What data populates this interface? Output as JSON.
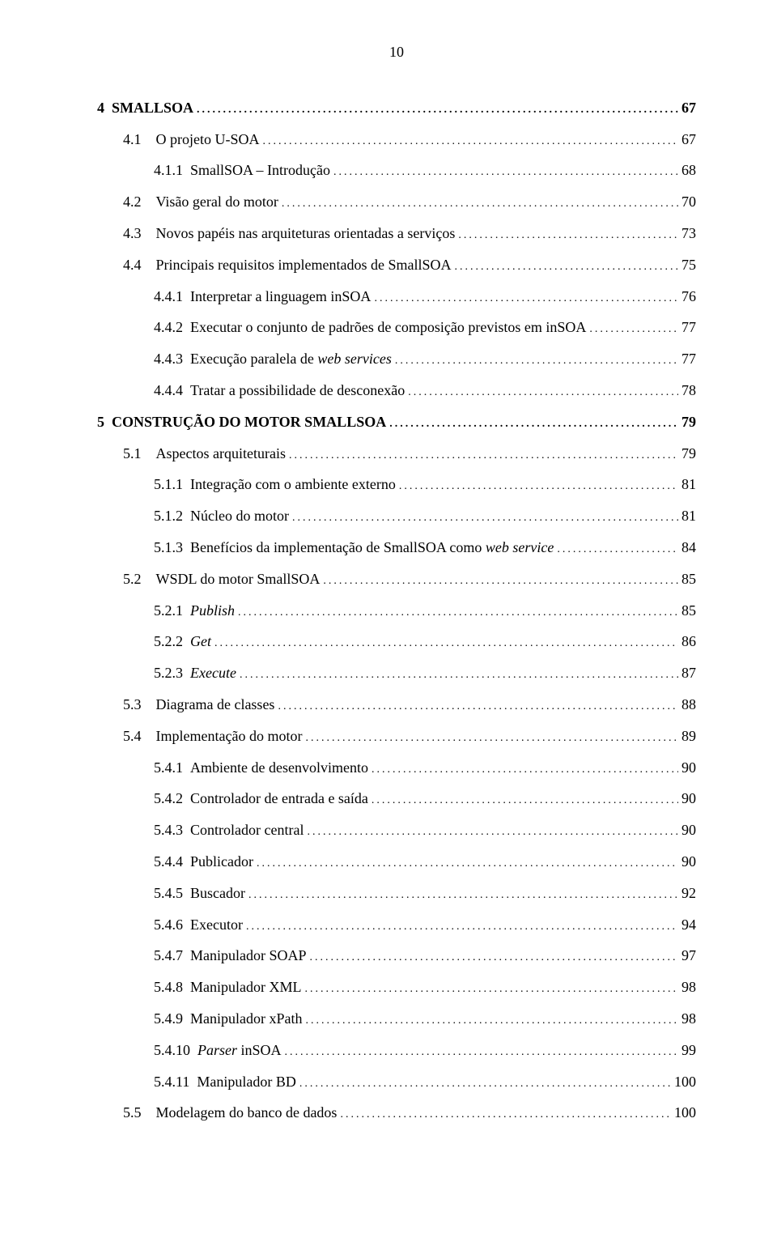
{
  "page_number": "10",
  "entries": [
    {
      "num": "4",
      "title": "SMALLSOA",
      "page": "67",
      "level": 0,
      "bold": true,
      "italic": false
    },
    {
      "num": "4.1",
      "title": "O projeto U-SOA",
      "page": "67",
      "level": 1,
      "bold": false,
      "italic": false
    },
    {
      "num": "4.1.1",
      "title": "SmallSOA – Introdução",
      "page": "68",
      "level": 2,
      "bold": false,
      "italic": false
    },
    {
      "num": "4.2",
      "title": "Visão geral do motor",
      "page": "70",
      "level": 1,
      "bold": false,
      "italic": false
    },
    {
      "num": "4.3",
      "title": "Novos papéis nas arquiteturas orientadas a serviços",
      "page": "73",
      "level": 1,
      "bold": false,
      "italic": false
    },
    {
      "num": "4.4",
      "title": "Principais requisitos implementados de SmallSOA",
      "page": "75",
      "level": 1,
      "bold": false,
      "italic": false
    },
    {
      "num": "4.4.1",
      "title": "Interpretar a linguagem inSOA",
      "page": "76",
      "level": 2,
      "bold": false,
      "italic": false
    },
    {
      "num": "4.4.2",
      "title": "Executar o conjunto de padrões de composição previstos em inSOA",
      "page": "77",
      "level": 2,
      "bold": false,
      "italic": false
    },
    {
      "num": "4.4.3",
      "title": "Execução paralela de ",
      "title_italic": "web services",
      "page": "77",
      "level": 2,
      "bold": false,
      "italic": false
    },
    {
      "num": "4.4.4",
      "title": "Tratar a possibilidade de desconexão",
      "page": "78",
      "level": 2,
      "bold": false,
      "italic": false
    },
    {
      "num": "5",
      "title": "CONSTRUÇÃO DO MOTOR SMALLSOA",
      "page": "79",
      "level": 0,
      "bold": true,
      "italic": false
    },
    {
      "num": "5.1",
      "title": "Aspectos arquiteturais",
      "page": "79",
      "level": 1,
      "bold": false,
      "italic": false
    },
    {
      "num": "5.1.1",
      "title": "Integração com o ambiente externo",
      "page": "81",
      "level": 2,
      "bold": false,
      "italic": false
    },
    {
      "num": "5.1.2",
      "title": "Núcleo do motor",
      "page": "81",
      "level": 2,
      "bold": false,
      "italic": false
    },
    {
      "num": "5.1.3",
      "title": "Benefícios da implementação de SmallSOA como ",
      "title_italic": "web service",
      "page": "84",
      "level": 2,
      "bold": false,
      "italic": false
    },
    {
      "num": "5.2",
      "title": "WSDL do motor SmallSOA",
      "page": "85",
      "level": 1,
      "bold": false,
      "italic": false
    },
    {
      "num": "5.2.1",
      "title_italic_full": "Publish",
      "page": "85",
      "level": 2,
      "bold": false,
      "italic": true
    },
    {
      "num": "5.2.2",
      "title_italic_full": "Get",
      "page": "86",
      "level": 2,
      "bold": false,
      "italic": true
    },
    {
      "num": "5.2.3",
      "title_italic_full": "Execute",
      "page": "87",
      "level": 2,
      "bold": false,
      "italic": true
    },
    {
      "num": "5.3",
      "title": "Diagrama de classes",
      "page": "88",
      "level": 1,
      "bold": false,
      "italic": false
    },
    {
      "num": "5.4",
      "title": "Implementação do motor",
      "page": "89",
      "level": 1,
      "bold": false,
      "italic": false
    },
    {
      "num": "5.4.1",
      "title": "Ambiente de desenvolvimento",
      "page": "90",
      "level": 2,
      "bold": false,
      "italic": false
    },
    {
      "num": "5.4.2",
      "title": "Controlador de entrada e saída",
      "page": "90",
      "level": 2,
      "bold": false,
      "italic": false
    },
    {
      "num": "5.4.3",
      "title": "Controlador central",
      "page": "90",
      "level": 2,
      "bold": false,
      "italic": false
    },
    {
      "num": "5.4.4",
      "title": "Publicador",
      "page": "90",
      "level": 2,
      "bold": false,
      "italic": false
    },
    {
      "num": "5.4.5",
      "title": "Buscador",
      "page": "92",
      "level": 2,
      "bold": false,
      "italic": false
    },
    {
      "num": "5.4.6",
      "title": "Executor",
      "page": "94",
      "level": 2,
      "bold": false,
      "italic": false
    },
    {
      "num": "5.4.7",
      "title": "Manipulador SOAP",
      "page": "97",
      "level": 2,
      "bold": false,
      "italic": false
    },
    {
      "num": "5.4.8",
      "title": "Manipulador XML",
      "page": "98",
      "level": 2,
      "bold": false,
      "italic": false
    },
    {
      "num": "5.4.9",
      "title": "Manipulador xPath",
      "page": "98",
      "level": 2,
      "bold": false,
      "italic": false
    },
    {
      "num": "5.4.10",
      "title_italic_prefix": "Parser",
      "title_after": " inSOA",
      "page": "99",
      "level": 2,
      "bold": false,
      "italic": false
    },
    {
      "num": "5.4.11",
      "title": "Manipulador BD",
      "page": "100",
      "level": 2,
      "bold": false,
      "italic": false
    },
    {
      "num": "5.5",
      "title": "Modelagem do banco de dados",
      "page": "100",
      "level": 1,
      "bold": false,
      "italic": false
    }
  ]
}
